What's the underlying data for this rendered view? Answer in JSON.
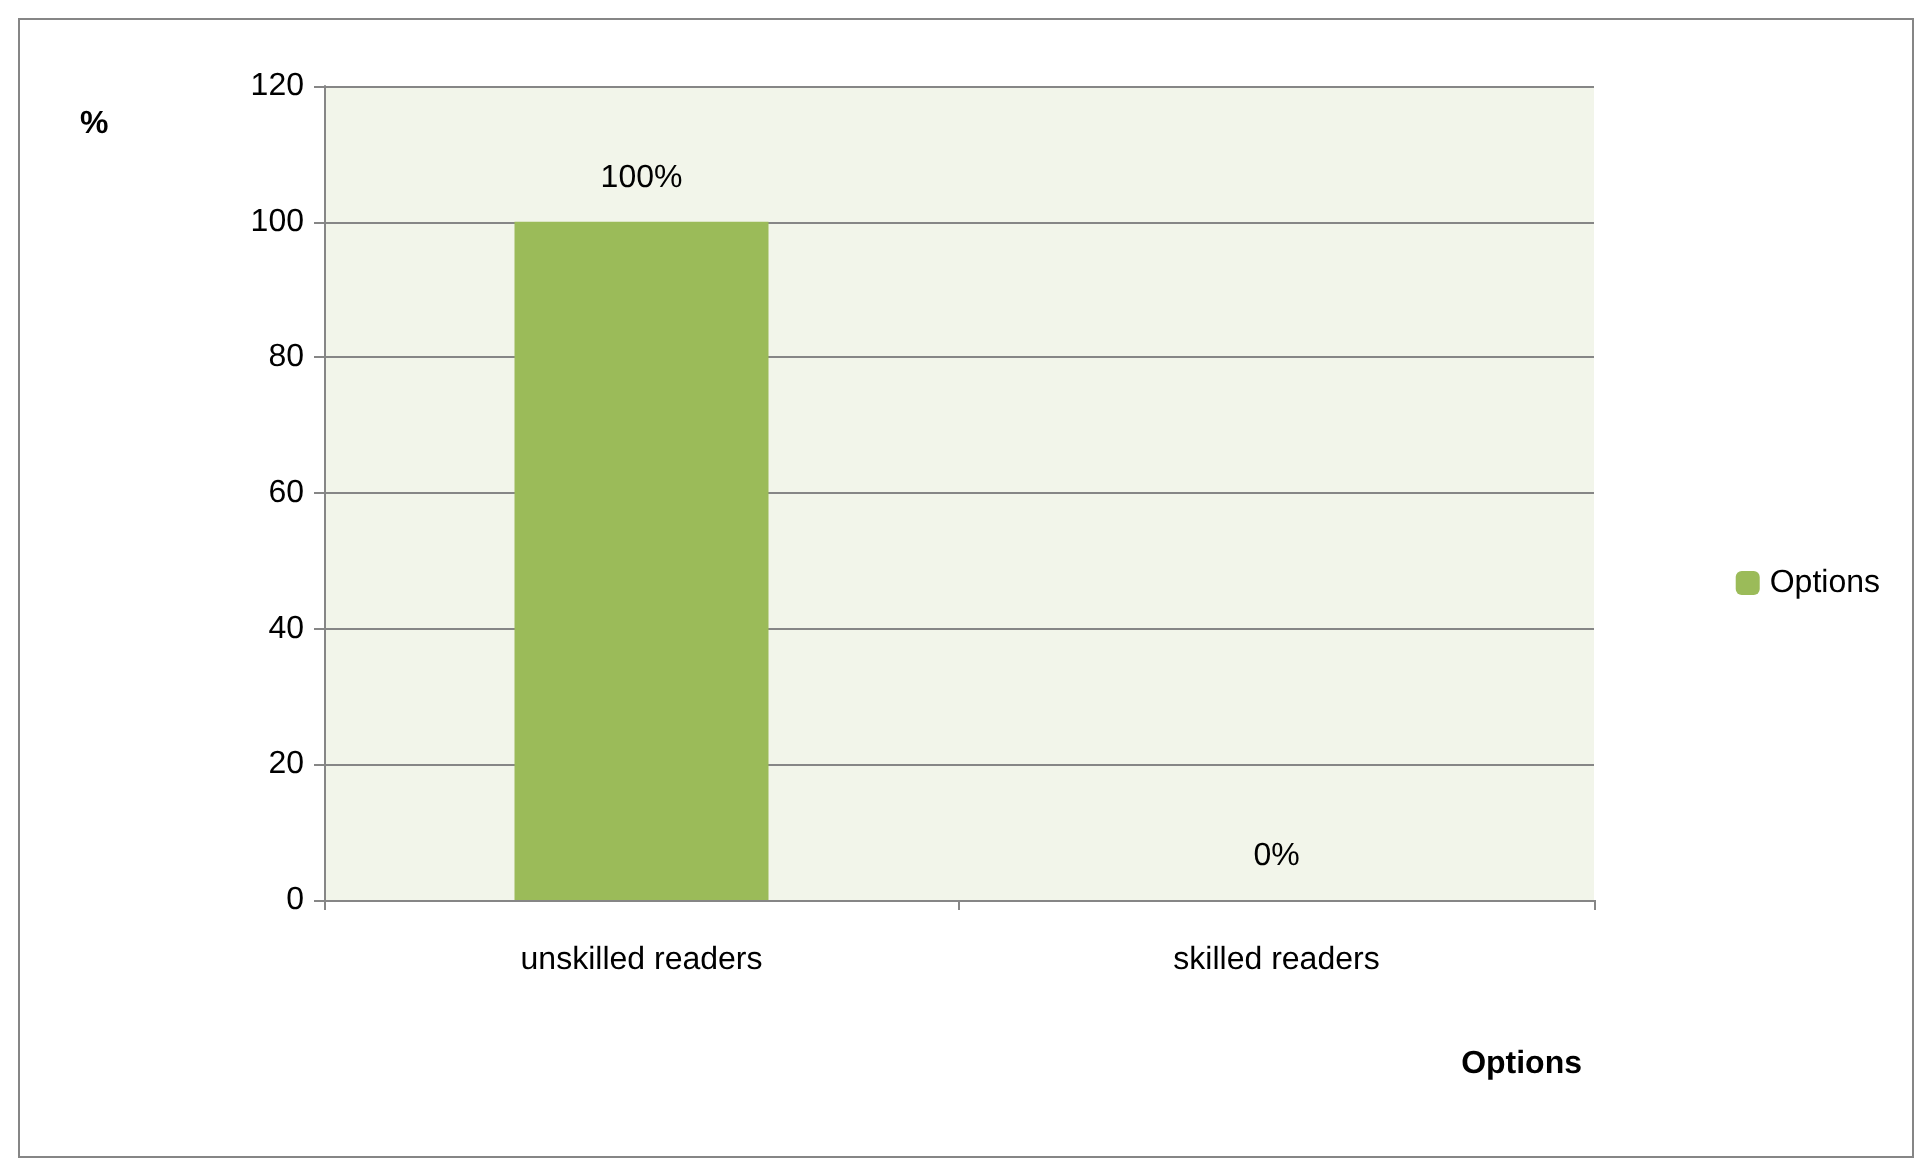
{
  "chart_data": {
    "type": "bar",
    "xlabel": "Options",
    "ylabel": "%",
    "categories": [
      "unskilled readers",
      "skilled readers"
    ],
    "series": [
      {
        "name": "Options",
        "color": "#9bbb59",
        "values": [
          100,
          0
        ],
        "value_labels": [
          "100%",
          "0%"
        ]
      }
    ],
    "ylim": [
      0,
      120
    ],
    "yticks": [
      0,
      20,
      40,
      60,
      80,
      100,
      120
    ],
    "grid": "y",
    "legend": "right"
  }
}
